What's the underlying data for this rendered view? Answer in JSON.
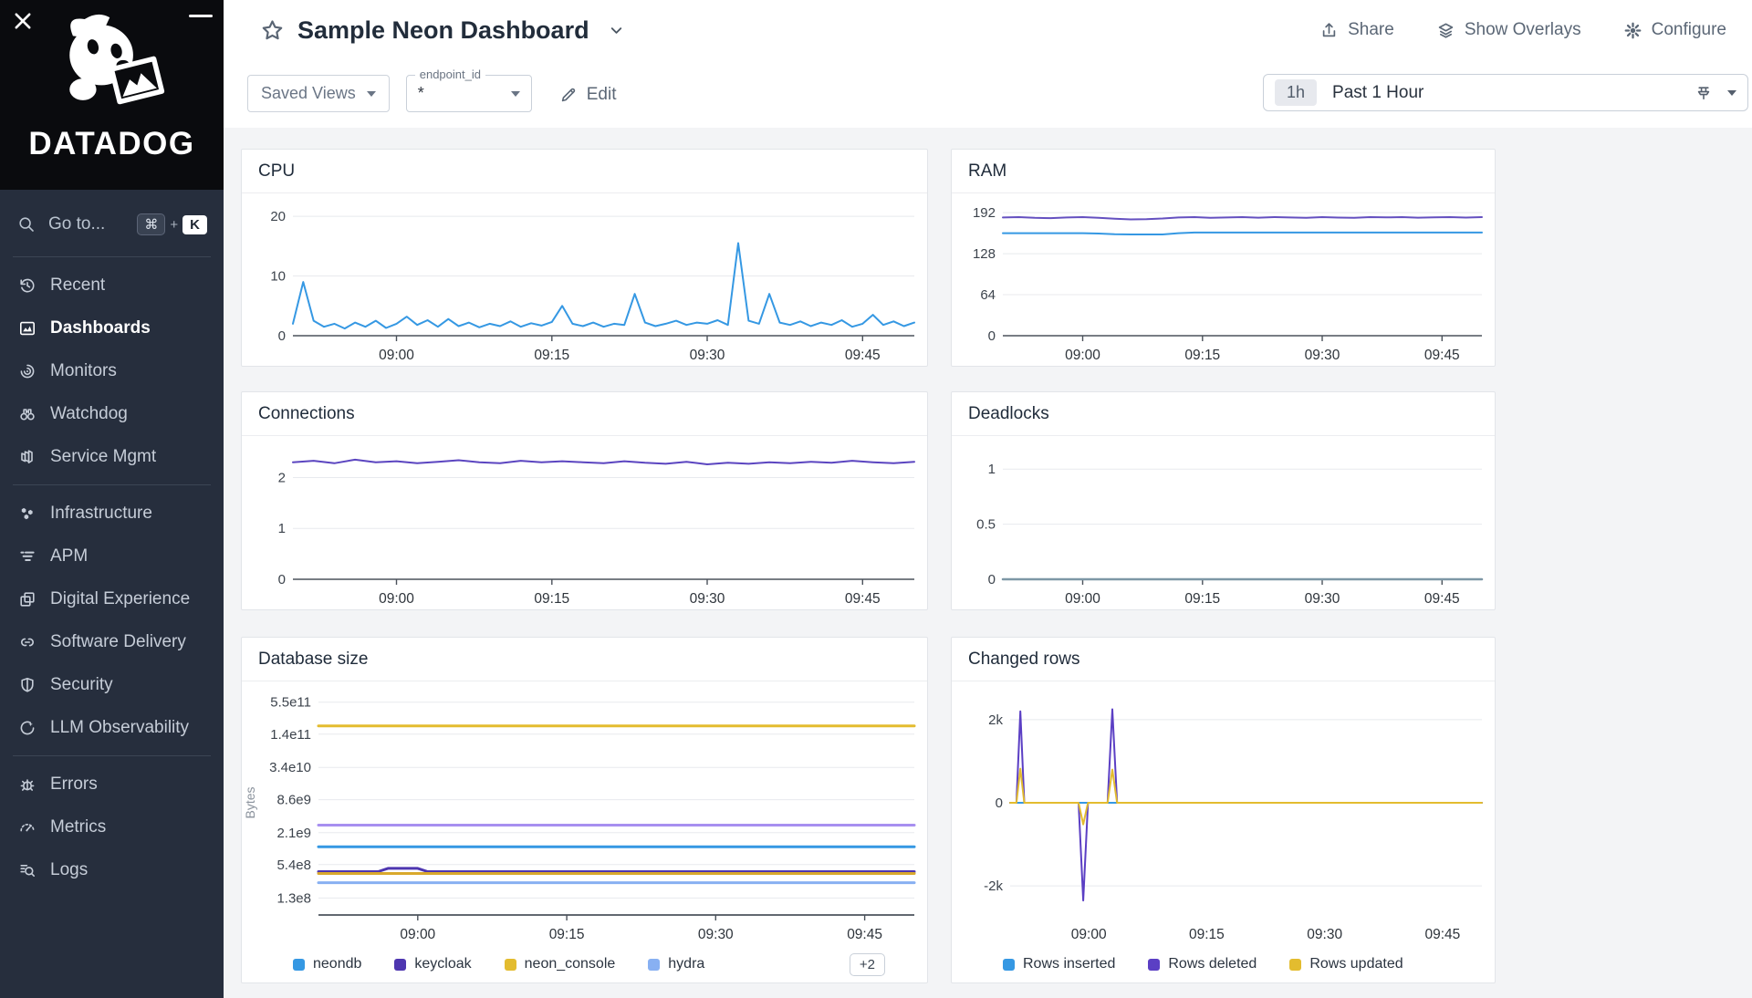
{
  "sidebar": {
    "brand": "DATADOG",
    "goto": {
      "label": "Go to...",
      "key_mod": "⌘",
      "key_plus": "+",
      "key_letter": "K"
    },
    "sections": [
      {
        "items": [
          {
            "id": "recent",
            "label": "Recent",
            "icon": "history-icon",
            "active": false
          },
          {
            "id": "dashboards",
            "label": "Dashboards",
            "icon": "dashboards-icon",
            "active": true
          },
          {
            "id": "monitors",
            "label": "Monitors",
            "icon": "monitors-icon",
            "active": false
          },
          {
            "id": "watchdog",
            "label": "Watchdog",
            "icon": "watchdog-icon",
            "active": false
          },
          {
            "id": "service-mgmt",
            "label": "Service Mgmt",
            "icon": "service-mgmt-icon",
            "active": false
          }
        ]
      },
      {
        "items": [
          {
            "id": "infrastructure",
            "label": "Infrastructure",
            "icon": "infrastructure-icon",
            "active": false
          },
          {
            "id": "apm",
            "label": "APM",
            "icon": "apm-icon",
            "active": false
          },
          {
            "id": "digital-experience",
            "label": "Digital Experience",
            "icon": "digital-experience-icon",
            "active": false
          },
          {
            "id": "software-delivery",
            "label": "Software Delivery",
            "icon": "software-delivery-icon",
            "active": false
          },
          {
            "id": "security",
            "label": "Security",
            "icon": "security-icon",
            "active": false
          },
          {
            "id": "llm-observability",
            "label": "LLM Observability",
            "icon": "llm-observability-icon",
            "active": false
          }
        ]
      },
      {
        "items": [
          {
            "id": "errors",
            "label": "Errors",
            "icon": "errors-icon",
            "active": false
          },
          {
            "id": "metrics",
            "label": "Metrics",
            "icon": "metrics-icon",
            "active": false
          },
          {
            "id": "logs",
            "label": "Logs",
            "icon": "logs-icon",
            "active": false
          }
        ]
      }
    ]
  },
  "header": {
    "title": "Sample Neon Dashboard",
    "saved_views": "Saved Views",
    "template_variable": {
      "label": "endpoint_id",
      "value": "*"
    },
    "edit": "Edit",
    "share": "Share",
    "show_overlays": "Show Overlays",
    "configure": "Configure",
    "time_range": {
      "badge": "1h",
      "label": "Past 1 Hour"
    }
  },
  "chart_data": [
    {
      "id": "cpu",
      "title": "CPU",
      "type": "line",
      "yscale": "linear",
      "ylim": [
        0,
        22
      ],
      "axis_v": 0,
      "x_domain": [
        0,
        60
      ],
      "x_ticks": [
        {
          "t": 10,
          "label": "09:00"
        },
        {
          "t": 25,
          "label": "09:15"
        },
        {
          "t": 40,
          "label": "09:30"
        },
        {
          "t": 55,
          "label": "09:45"
        }
      ],
      "y_ticks": [
        {
          "v": 0,
          "label": "0"
        },
        {
          "v": 10,
          "label": "10"
        },
        {
          "v": 20,
          "label": "20"
        }
      ],
      "series": [
        {
          "name": "cpu",
          "color": "#3598e3",
          "t_start": 0,
          "t_step": 1,
          "values": [
            2,
            9,
            2.5,
            1.5,
            2,
            1.2,
            2.2,
            1.5,
            2.5,
            1.3,
            2,
            3.2,
            1.8,
            2.6,
            1.5,
            2.8,
            1.6,
            2.2,
            1.4,
            2,
            1.6,
            2.4,
            1.5,
            2.1,
            1.7,
            2.3,
            5,
            2,
            1.6,
            2.2,
            1.5,
            2,
            1.8,
            7,
            2.2,
            1.6,
            2,
            2.5,
            1.8,
            2.2,
            2,
            2.6,
            1.8,
            15.5,
            2.5,
            2,
            7,
            2.2,
            1.8,
            2.4,
            1.6,
            2.2,
            1.8,
            2.6,
            1.5,
            2,
            3.5,
            1.8,
            2.4,
            1.6,
            2.2
          ]
        }
      ]
    },
    {
      "id": "ram",
      "title": "RAM",
      "type": "line",
      "yscale": "linear",
      "ylim": [
        0,
        205
      ],
      "axis_v": 0,
      "x_domain": [
        0,
        60
      ],
      "x_ticks": [
        {
          "t": 10,
          "label": "09:00"
        },
        {
          "t": 25,
          "label": "09:15"
        },
        {
          "t": 40,
          "label": "09:30"
        },
        {
          "t": 55,
          "label": "09:45"
        }
      ],
      "y_ticks": [
        {
          "v": 0,
          "label": "0"
        },
        {
          "v": 64,
          "label": "64"
        },
        {
          "v": 128,
          "label": "128"
        },
        {
          "v": 192,
          "label": "192"
        }
      ],
      "series": [
        {
          "name": "ram total",
          "color": "#6450c0",
          "t_start": 0,
          "t_step": 2,
          "values": [
            184.5,
            185,
            184,
            183.5,
            184.5,
            185,
            184,
            182.5,
            181.5,
            182,
            183,
            184.5,
            185,
            184,
            184.5,
            185,
            184.2,
            185,
            184.5,
            184,
            185,
            184.4,
            184,
            185,
            184.6,
            185,
            184.2,
            184.6,
            185,
            184.4,
            185
          ]
        },
        {
          "name": "ram used",
          "color": "#3598e3",
          "t_start": 0,
          "t_step": 2,
          "values": [
            160,
            160,
            160,
            160,
            160,
            160,
            159.5,
            158.5,
            158,
            158,
            158,
            160,
            161,
            161,
            161,
            161,
            161,
            161,
            161,
            161,
            161,
            161,
            161,
            161,
            161,
            161,
            161,
            161,
            161,
            161,
            161
          ]
        }
      ]
    },
    {
      "id": "connections",
      "title": "Connections",
      "type": "line",
      "yscale": "linear",
      "ylim": [
        0,
        2.6
      ],
      "axis_v": 0,
      "x_domain": [
        0,
        60
      ],
      "x_ticks": [
        {
          "t": 10,
          "label": "09:00"
        },
        {
          "t": 25,
          "label": "09:15"
        },
        {
          "t": 40,
          "label": "09:30"
        },
        {
          "t": 55,
          "label": "09:45"
        }
      ],
      "y_ticks": [
        {
          "v": 0,
          "label": "0"
        },
        {
          "v": 1,
          "label": "1"
        },
        {
          "v": 2,
          "label": "2"
        }
      ],
      "series": [
        {
          "name": "connections",
          "color": "#5b45c0",
          "t_start": 0,
          "t_step": 2,
          "values": [
            2.3,
            2.33,
            2.28,
            2.35,
            2.3,
            2.32,
            2.28,
            2.31,
            2.34,
            2.3,
            2.28,
            2.33,
            2.3,
            2.32,
            2.3,
            2.28,
            2.32,
            2.29,
            2.27,
            2.31,
            2.26,
            2.29,
            2.27,
            2.3,
            2.28,
            2.31,
            2.29,
            2.33,
            2.3,
            2.28,
            2.31
          ]
        }
      ]
    },
    {
      "id": "deadlocks",
      "title": "Deadlocks",
      "type": "line",
      "yscale": "linear",
      "ylim": [
        0,
        1.2
      ],
      "axis_v": 0,
      "axis_color": "#6d8796",
      "x_domain": [
        0,
        60
      ],
      "x_ticks": [
        {
          "t": 10,
          "label": "09:00"
        },
        {
          "t": 25,
          "label": "09:15"
        },
        {
          "t": 40,
          "label": "09:30"
        },
        {
          "t": 55,
          "label": "09:45"
        }
      ],
      "y_ticks": [
        {
          "v": 0,
          "label": "0"
        },
        {
          "v": 0.5,
          "label": "0.5"
        },
        {
          "v": 1,
          "label": "1"
        }
      ],
      "series": [
        {
          "name": "deadlocks",
          "color": "#7d97a6",
          "width": 2.5,
          "points": [
            [
              0,
              0
            ],
            [
              60,
              0
            ]
          ]
        }
      ]
    },
    {
      "id": "dbsize",
      "title": "Database size",
      "type": "line",
      "yscale": "log",
      "ylabel": "Bytes",
      "ylim": [
        63000000.0,
        900000000000.0
      ],
      "axis_bottom": true,
      "x_domain": [
        0,
        60
      ],
      "x_ticks": [
        {
          "t": 10,
          "label": "09:00"
        },
        {
          "t": 25,
          "label": "09:15"
        },
        {
          "t": 40,
          "label": "09:30"
        },
        {
          "t": 55,
          "label": "09:45"
        }
      ],
      "y_ticks": [
        {
          "v": 130000000.0,
          "label": "1.3e8"
        },
        {
          "v": 540000000.0,
          "label": "5.4e8"
        },
        {
          "v": 2100000000.0,
          "label": "2.1e9"
        },
        {
          "v": 8600000000.0,
          "label": "8.6e9"
        },
        {
          "v": 34000000000.0,
          "label": "3.4e10"
        },
        {
          "v": 140000000000.0,
          "label": "1.4e11"
        },
        {
          "v": 550000000000.0,
          "label": "5.5e11"
        }
      ],
      "series": [
        {
          "name": "neon_console",
          "color": "#e3bc2f",
          "width": 3,
          "points": [
            [
              0,
              200000000000.0
            ],
            [
              60,
              200000000000.0
            ]
          ]
        },
        {
          "name": "unlabeled-lavender",
          "color": "#a78ff0",
          "width": 3,
          "points": [
            [
              0,
              2900000000.0
            ],
            [
              60,
              2900000000.0
            ]
          ]
        },
        {
          "name": "neondb",
          "color": "#3598e3",
          "width": 3,
          "points": [
            [
              0,
              1150000000.0
            ],
            [
              60,
              1150000000.0
            ]
          ]
        },
        {
          "name": "keycloak",
          "color": "#4e36b0",
          "width": 3,
          "points": [
            [
              0,
              400000000.0
            ],
            [
              6,
              400000000.0
            ],
            [
              7,
              460000000.0
            ],
            [
              10,
              460000000.0
            ],
            [
              11,
              400000000.0
            ],
            [
              60,
              400000000.0
            ]
          ]
        },
        {
          "name": "unlabeled-gold",
          "color": "#d9a82c",
          "width": 3,
          "points": [
            [
              0,
              370000000.0
            ],
            [
              60,
              370000000.0
            ]
          ]
        },
        {
          "name": "hydra",
          "color": "#88b0f2",
          "width": 3,
          "points": [
            [
              0,
              250000000.0
            ],
            [
              60,
              250000000.0
            ]
          ]
        }
      ],
      "legend": [
        {
          "label": "neondb",
          "color": "#3598e3"
        },
        {
          "label": "keycloak",
          "color": "#4e36b0"
        },
        {
          "label": "neon_console",
          "color": "#e3bc2f"
        },
        {
          "label": "hydra",
          "color": "#88b0f2"
        }
      ],
      "legend_overflow": "+2"
    },
    {
      "id": "changed",
      "title": "Changed rows",
      "type": "line",
      "yscale": "linear",
      "ylim": [
        -2700,
        2700
      ],
      "x_domain": [
        0,
        60
      ],
      "x_ticks": [
        {
          "t": 10,
          "label": "09:00"
        },
        {
          "t": 25,
          "label": "09:15"
        },
        {
          "t": 40,
          "label": "09:30"
        },
        {
          "t": 55,
          "label": "09:45"
        }
      ],
      "y_ticks": [
        {
          "v": 2000,
          "label": "2k"
        },
        {
          "v": 0,
          "label": "0"
        },
        {
          "v": -2000,
          "label": "-2k"
        }
      ],
      "series": [
        {
          "name": "Rows inserted",
          "color": "#3598e3",
          "points": [
            [
              0,
              0
            ],
            [
              60,
              0
            ]
          ]
        },
        {
          "name": "Rows deleted",
          "color": "#5b3fc4",
          "points": [
            [
              0,
              0
            ],
            [
              0.8,
              0
            ],
            [
              1.3,
              2200
            ],
            [
              1.8,
              0
            ],
            [
              8.7,
              0
            ],
            [
              9.3,
              -2350
            ],
            [
              9.9,
              0
            ],
            [
              12.4,
              0
            ],
            [
              13,
              2250
            ],
            [
              13.6,
              0
            ],
            [
              60,
              0
            ]
          ]
        },
        {
          "name": "Rows updated",
          "color": "#e3bc2f",
          "points": [
            [
              0,
              0
            ],
            [
              0.8,
              0
            ],
            [
              1.3,
              820
            ],
            [
              1.8,
              0
            ],
            [
              8.7,
              0
            ],
            [
              9.3,
              -520
            ],
            [
              9.9,
              0
            ],
            [
              12.4,
              0
            ],
            [
              13,
              800
            ],
            [
              13.6,
              0
            ],
            [
              60,
              0
            ]
          ]
        }
      ],
      "legend": [
        {
          "label": "Rows inserted",
          "color": "#3598e3"
        },
        {
          "label": "Rows deleted",
          "color": "#5b3fc4"
        },
        {
          "label": "Rows updated",
          "color": "#e3bc2f"
        }
      ]
    }
  ]
}
